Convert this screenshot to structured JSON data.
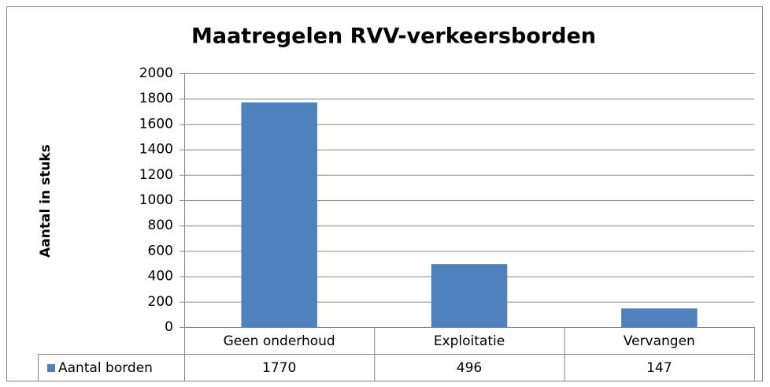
{
  "chart_data": {
    "type": "bar",
    "title": "Maatregelen RVV-verkeersborden",
    "y_label": "Aantal in stuks",
    "categories": [
      "Geen onderhoud",
      "Exploitatie",
      "Vervangen"
    ],
    "series": [
      {
        "name": "Aantal borden",
        "color": "#4f81bd",
        "values": [
          1770,
          496,
          147
        ]
      }
    ],
    "ylim": [
      0,
      2000
    ],
    "yticks": [
      0,
      200,
      400,
      600,
      800,
      1000,
      1200,
      1400,
      1600,
      1800,
      2000
    ],
    "grid": true,
    "data_table": true
  }
}
